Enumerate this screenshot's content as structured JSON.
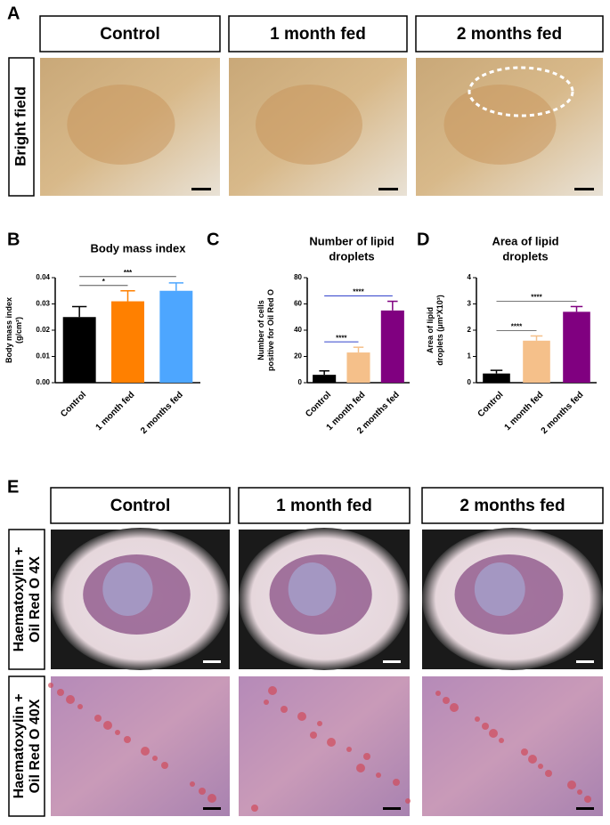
{
  "panel_a": {
    "label": "A",
    "columns": [
      "Control",
      "1 month fed",
      "2 months fed"
    ],
    "row_label": "Bright field"
  },
  "chart_data": [
    {
      "type": "bar",
      "label": "B",
      "title": [
        "Body mass index"
      ],
      "ylabel": [
        "Body mass index",
        "(g/cm²)"
      ],
      "categories": [
        "Control",
        "1 month fed",
        "2 months fed"
      ],
      "values": [
        0.025,
        0.031,
        0.035
      ],
      "errors": [
        0.004,
        0.004,
        0.003
      ],
      "colors": [
        "#000000",
        "#ff8000",
        "#4da6ff"
      ],
      "ylim": [
        0,
        0.04
      ],
      "yticks": [
        {
          "value": 0,
          "label": "0.00"
        },
        {
          "value": 0.01,
          "label": "0.01"
        },
        {
          "value": 0.02,
          "label": "0.02"
        },
        {
          "value": 0.03,
          "label": "0.03"
        },
        {
          "value": 0.04,
          "label": "0.04"
        }
      ],
      "significance": [
        {
          "from": "Control",
          "to": "1 month fed",
          "label": "*",
          "color": "#555555"
        },
        {
          "from": "Control",
          "to": "2 months fed",
          "label": "***",
          "color": "#555555"
        }
      ]
    },
    {
      "type": "bar",
      "label": "C",
      "title": [
        "Number of lipid",
        "droplets"
      ],
      "ylabel": [
        "Number of cells",
        "positive for Oil Red O"
      ],
      "categories": [
        "Control",
        "1 month fed",
        "2 months fed"
      ],
      "values": [
        6,
        23,
        55
      ],
      "errors": [
        3,
        4,
        7
      ],
      "colors": [
        "#000000",
        "#f5c08a",
        "#800080"
      ],
      "ylim": [
        0,
        80
      ],
      "yticks": [
        0,
        20,
        40,
        60,
        80
      ],
      "significance": [
        {
          "from": "Control",
          "to": "1 month fed",
          "label": "****",
          "color": "#3344cc"
        },
        {
          "from": "Control",
          "to": "2 months fed",
          "label": "****",
          "color": "#3344cc"
        }
      ]
    },
    {
      "type": "bar",
      "label": "D",
      "title": [
        "Area of lipid",
        "droplets"
      ],
      "ylabel": [
        "Area of lipid",
        "droplets (μm²X10³)"
      ],
      "categories": [
        "Control",
        "1 month fed",
        "2 months fed"
      ],
      "values": [
        0.35,
        1.6,
        2.7
      ],
      "errors": [
        0.12,
        0.18,
        0.2
      ],
      "colors": [
        "#000000",
        "#f5c08a",
        "#800080"
      ],
      "ylim": [
        0,
        4
      ],
      "yticks": [
        0,
        1,
        2,
        3,
        4
      ],
      "significance": [
        {
          "from": "Control",
          "to": "1 month fed",
          "label": "****",
          "color": "#777777"
        },
        {
          "from": "Control",
          "to": "2 months fed",
          "label": "****",
          "color": "#777777"
        }
      ]
    }
  ],
  "panel_e": {
    "label": "E",
    "columns": [
      "Control",
      "1 month fed",
      "2 months fed"
    ],
    "rows": [
      [
        "Haematoxylin +",
        "Oil Red O 4X"
      ],
      [
        "Haematoxylin +",
        "Oil Red O 40X"
      ]
    ]
  }
}
